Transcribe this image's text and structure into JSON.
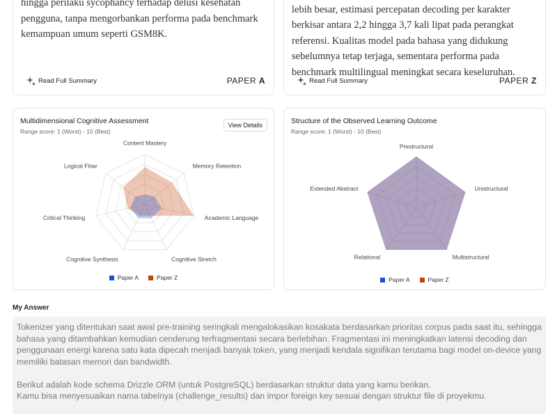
{
  "papers": [
    {
      "summary": "hingga perilaku sycophancy terhadap delusi kesehatan pengguna, tanpa mengorbankan performa pada benchmark kemampuan umum seperti GSM8K.",
      "read_label": "Read Full Summary",
      "paper_word": "PAPER",
      "paper_letter": "A"
    },
    {
      "summary": "peningkatan biaya komputasi per token dari kosakata yang lebih besar, estimasi percepatan decoding per karakter berkisar antara 2,2 hingga 3,7 kali lipat pada perangkat referensi. Kualitas model pada bahasa yang didukung sebelumnya tetap terjaga, sementara performa pada benchmark multilingual meningkat secara keseluruhan.",
      "read_label": "Read Full Summary",
      "paper_word": "PAPER",
      "paper_letter": "Z"
    }
  ],
  "charts": [
    {
      "type": "radar",
      "title": "Multidimensional Cognitive Assessment",
      "subtitle": "Range score: 1 (Worst) - 10 (Best)",
      "button": "View Details",
      "categories": [
        "Content Mastery",
        "Memory Retention",
        "Academic Language",
        "Cognitive Stretch",
        "Cognitive Synthesis",
        "Critical Thinking",
        "Logical Flow"
      ],
      "rlim": [
        0,
        10
      ],
      "rticks": [
        2,
        4,
        6,
        8,
        10
      ],
      "series": [
        {
          "name": "Paper A",
          "color": "#1d4ed8",
          "values": [
            2,
            2.5,
            3.5,
            3,
            3,
            3,
            2.5
          ]
        },
        {
          "name": "Paper Z",
          "color": "#c2410c",
          "values": [
            7.5,
            7,
            10,
            2.5,
            2.5,
            3.5,
            5.5
          ]
        }
      ]
    },
    {
      "type": "radar",
      "title": "Structure of the Observed Learning Outcome",
      "subtitle": "Range score: 1 (Worst) - 10 (Best)",
      "categories": [
        "Prestructural",
        "Unistructural",
        "Multistructural",
        "Relational",
        "Extended Abstract"
      ],
      "rlim": [
        0,
        10
      ],
      "rticks": [
        2,
        4,
        6,
        8,
        10
      ],
      "series": [
        {
          "name": "Paper A",
          "color": "#1d4ed8",
          "values": [
            10,
            10,
            10,
            10,
            10
          ]
        },
        {
          "name": "Paper Z",
          "color": "#c2410c",
          "values": [
            10,
            10,
            10,
            10,
            10
          ]
        }
      ]
    }
  ],
  "answer": {
    "heading": "My Answer",
    "paragraphs": [
      "Tokenizer yang ditentukan saat awal pre-training seringkali mengalokasikan kosakata berdasarkan prioritas corpus pada saat itu, sehingga bahasa yang ditambahkan kemudian cenderung terfragmentasi secara berlebihan. Fragmentasi ini meningkatkan latensi decoding dan penggunaan energi karena satu kata dipecah menjadi banyak token, yang menjadi kendala signifikan terutama bagi model on-device yang memiliki batasan memori dan bandwidth.",
      "Berikut adalah kode schema Drizzle ORM (untuk PostgreSQL) berdasarkan struktur data yang kamu berikan.",
      "Kamu bisa menyesuaikan nama tabelnya (challenge_results) dan impor foreign key sesuai dengan struktur file di proyekmu."
    ]
  }
}
